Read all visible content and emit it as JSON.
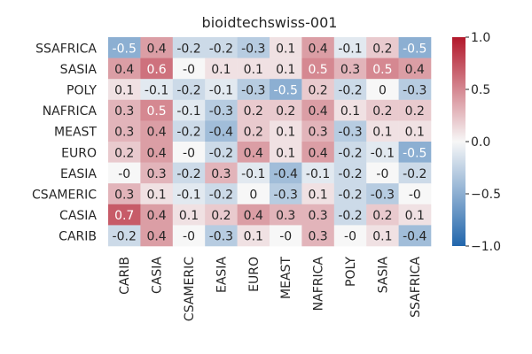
{
  "chart_data": {
    "type": "heatmap",
    "title": "bioidtechswiss-001",
    "xlabel": "",
    "ylabel": "",
    "x_categories": [
      "CARIB",
      "CASIA",
      "CSAMERIC",
      "EASIA",
      "EURO",
      "MEAST",
      "NAFRICA",
      "POLY",
      "SASIA",
      "SSAFRICA"
    ],
    "y_categories": [
      "SSAFRICA",
      "SASIA",
      "POLY",
      "NAFRICA",
      "MEAST",
      "EURO",
      "EASIA",
      "CSAMERIC",
      "CASIA",
      "CARIB"
    ],
    "value_labels": [
      [
        "-0.5",
        "0.4",
        "-0.2",
        "-0.2",
        "-0.3",
        "0.1",
        "0.4",
        "-0.1",
        "0.2",
        "-0.5"
      ],
      [
        "0.4",
        "0.6",
        "-0",
        "0.1",
        "0.1",
        "0.1",
        "0.5",
        "0.3",
        "0.5",
        "0.4"
      ],
      [
        "0.1",
        "-0.1",
        "-0.2",
        "-0.1",
        "-0.3",
        "-0.5",
        "0.2",
        "-0.2",
        "0",
        "-0.3"
      ],
      [
        "0.3",
        "0.5",
        "-0.1",
        "-0.3",
        "0.2",
        "0.2",
        "0.4",
        "0.1",
        "0.2",
        "0.2"
      ],
      [
        "0.3",
        "0.4",
        "-0.2",
        "-0.4",
        "0.2",
        "0.1",
        "0.3",
        "-0.3",
        "0.1",
        "0.1"
      ],
      [
        "0.2",
        "0.4",
        "-0",
        "-0.2",
        "0.4",
        "0.1",
        "0.4",
        "-0.2",
        "-0.1",
        "-0.5"
      ],
      [
        "-0",
        "0.3",
        "-0.2",
        "0.3",
        "-0.1",
        "-0.4",
        "-0.1",
        "-0.2",
        "-0",
        "-0.2"
      ],
      [
        "0.3",
        "0.1",
        "-0.1",
        "-0.2",
        "0",
        "-0.3",
        "0.1",
        "-0.2",
        "-0.3",
        "-0"
      ],
      [
        "0.7",
        "0.4",
        "0.1",
        "0.2",
        "0.4",
        "0.3",
        "0.3",
        "-0.2",
        "0.2",
        "0.1"
      ],
      [
        "-0.2",
        "0.4",
        "-0",
        "-0.3",
        "0.1",
        "-0",
        "0.3",
        "-0",
        "0.1",
        "-0.4"
      ]
    ],
    "values": [
      [
        -0.5,
        0.4,
        -0.2,
        -0.2,
        -0.3,
        0.1,
        0.4,
        -0.1,
        0.2,
        -0.5
      ],
      [
        0.4,
        0.6,
        0.0,
        0.1,
        0.1,
        0.1,
        0.5,
        0.3,
        0.5,
        0.4
      ],
      [
        0.1,
        -0.1,
        -0.2,
        -0.1,
        -0.3,
        -0.5,
        0.2,
        -0.2,
        0.0,
        -0.3
      ],
      [
        0.3,
        0.5,
        -0.1,
        -0.3,
        0.2,
        0.2,
        0.4,
        0.1,
        0.2,
        0.2
      ],
      [
        0.3,
        0.4,
        -0.2,
        -0.4,
        0.2,
        0.1,
        0.3,
        -0.3,
        0.1,
        0.1
      ],
      [
        0.2,
        0.4,
        0.0,
        -0.2,
        0.4,
        0.1,
        0.4,
        -0.2,
        -0.1,
        -0.5
      ],
      [
        0.0,
        0.3,
        -0.2,
        0.3,
        -0.1,
        -0.4,
        -0.1,
        -0.2,
        0.0,
        -0.2
      ],
      [
        0.3,
        0.1,
        -0.1,
        -0.2,
        0.0,
        -0.3,
        0.1,
        -0.2,
        -0.3,
        0.0
      ],
      [
        0.7,
        0.4,
        0.1,
        0.2,
        0.4,
        0.3,
        0.3,
        -0.2,
        0.2,
        0.1
      ],
      [
        -0.2,
        0.4,
        0.0,
        -0.3,
        0.1,
        0.0,
        0.3,
        0.0,
        0.1,
        -0.4
      ]
    ],
    "vmin": -1.0,
    "vmax": 1.0,
    "colormap": "diverging blue-white-red",
    "colors": {
      "low": "#2166ac",
      "mid": "#f7f7f7",
      "high": "#b2182b"
    },
    "colorbar": {
      "ticks": [
        1.0,
        0.5,
        0.0,
        -0.5,
        -1.0
      ],
      "tick_labels": [
        "1.0",
        "0.5",
        "0.0",
        "−0.5",
        "−1.0"
      ]
    },
    "grid": false,
    "legend": "colorbar-right"
  }
}
